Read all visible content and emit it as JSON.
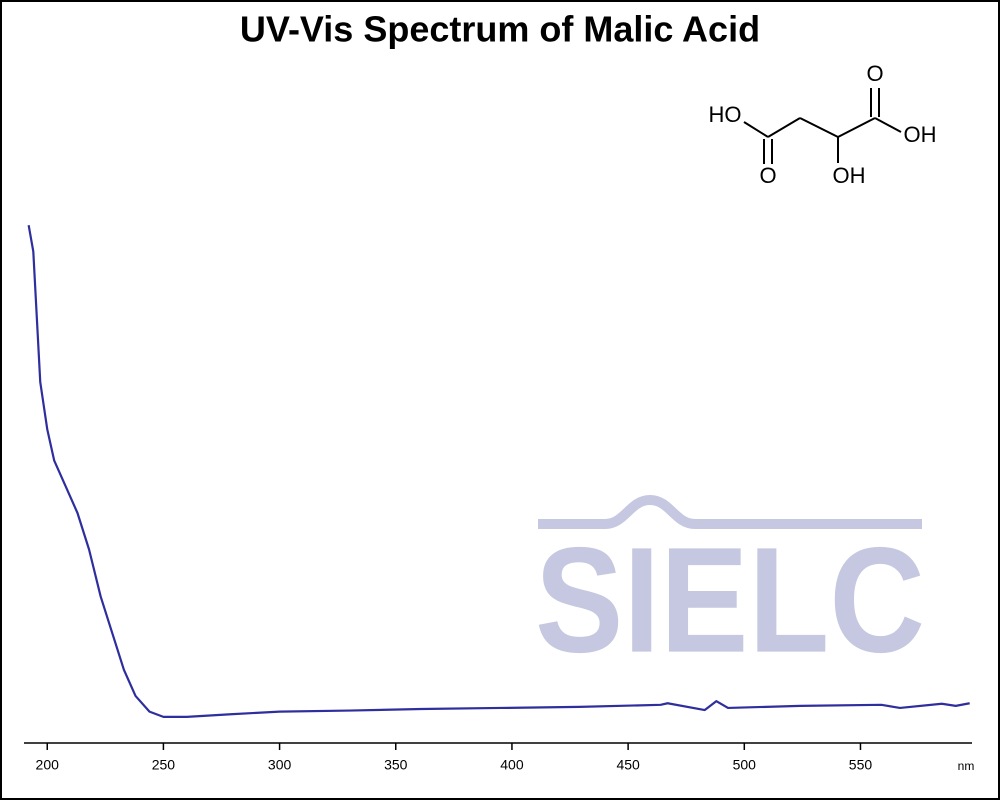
{
  "chart_data": {
    "type": "line",
    "title": "UV-Vis Spectrum of Malic Acid",
    "x_label": "nm",
    "watermark": "SIELC",
    "structure_labels": [
      "HO",
      "O",
      "OH",
      "O",
      "OH"
    ],
    "x": [
      192,
      194,
      197,
      200,
      203,
      208,
      213,
      218,
      223,
      228,
      233,
      238,
      244,
      250,
      260,
      279,
      300,
      330,
      361,
      395,
      429,
      464,
      467,
      483,
      488,
      493,
      524,
      559,
      567,
      585,
      591,
      597
    ],
    "values": [
      0.99,
      0.94,
      0.69,
      0.6,
      0.54,
      0.49,
      0.44,
      0.37,
      0.28,
      0.21,
      0.14,
      0.09,
      0.06,
      0.05,
      0.05,
      0.055,
      0.06,
      0.062,
      0.065,
      0.067,
      0.069,
      0.073,
      0.076,
      0.063,
      0.08,
      0.067,
      0.071,
      0.073,
      0.067,
      0.075,
      0.071,
      0.076
    ],
    "color": "#2e2e9e",
    "xlim": [
      190,
      598
    ],
    "ylim": [
      0,
      1
    ],
    "xticks": [
      200,
      250,
      300,
      350,
      400,
      450,
      500,
      550
    ]
  }
}
